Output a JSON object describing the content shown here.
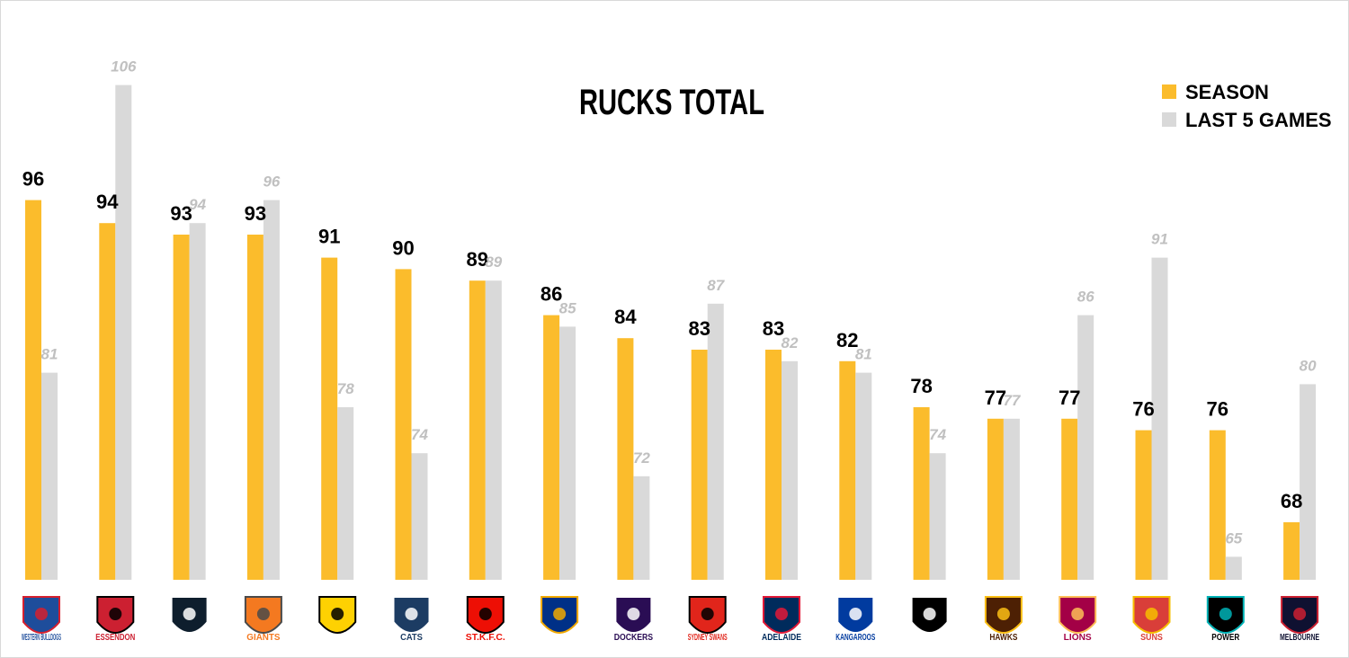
{
  "chart_data": {
    "type": "bar",
    "title": "RUCKS TOTAL",
    "xlabel": "",
    "ylabel": "",
    "ylim": [
      60,
      110
    ],
    "grid": false,
    "legend_position": "top-right",
    "categories": [
      "Western Bulldogs",
      "Essendon",
      "Carlton",
      "GWS Giants",
      "Richmond",
      "Geelong Cats",
      "St Kilda",
      "West Coast Eagles",
      "Fremantle Dockers",
      "Sydney Swans",
      "Adelaide Crows",
      "Kangaroos",
      "Collingwood",
      "Hawks",
      "Brisbane Lions",
      "Gold Coast Suns",
      "Port Adelaide Power",
      "Melbourne"
    ],
    "series": [
      {
        "name": "SEASON",
        "color": "#FBBC2C",
        "values": [
          96,
          94,
          93,
          93,
          91,
          90,
          89,
          86,
          84,
          83,
          83,
          82,
          78,
          77,
          77,
          76,
          76,
          68
        ]
      },
      {
        "name": "LAST 5 GAMES",
        "color": "#D9D9D9",
        "values": [
          81,
          106,
          94,
          96,
          78,
          74,
          89,
          85,
          72,
          87,
          82,
          81,
          74,
          77,
          86,
          91,
          65,
          80
        ]
      }
    ]
  },
  "logos": [
    {
      "icon": "bulldog-icon",
      "text": "WESTERN BULLDOGS",
      "color": "#1e4d9b",
      "accent": "#d6202e"
    },
    {
      "icon": "bomber-icon",
      "text": "ESSENDON",
      "color": "#cc2031",
      "accent": "#000000"
    },
    {
      "icon": "cfc-monogram-icon",
      "text": "",
      "color": "#0e1e2d",
      "accent": "#ffffff"
    },
    {
      "icon": "giants-icon",
      "text": "GIANTS",
      "color": "#f47920",
      "accent": "#4a4a4a"
    },
    {
      "icon": "tiger-icon",
      "text": "",
      "color": "#fed102",
      "accent": "#000000"
    },
    {
      "icon": "cat-icon",
      "text": "CATS",
      "color": "#1c3c63",
      "accent": "#ffffff"
    },
    {
      "icon": "saints-shield-icon",
      "text": "ST.K.F.C.",
      "color": "#ed0f05",
      "accent": "#000000"
    },
    {
      "icon": "eagle-icon",
      "text": "",
      "color": "#003087",
      "accent": "#f2a900"
    },
    {
      "icon": "anchor-icon",
      "text": "DOCKERS",
      "color": "#2a0d54",
      "accent": "#ffffff"
    },
    {
      "icon": "swan-icon",
      "text": "SYDNEY SWANS",
      "color": "#e1251b",
      "accent": "#000000"
    },
    {
      "icon": "crow-icon",
      "text": "ADELAIDE",
      "color": "#002b5c",
      "accent": "#e21937"
    },
    {
      "icon": "kangaroo-icon",
      "text": "KANGAROOS",
      "color": "#013b9f",
      "accent": "#ffffff"
    },
    {
      "icon": "magpie-icon",
      "text": "",
      "color": "#000000",
      "accent": "#ffffff"
    },
    {
      "icon": "hawk-icon",
      "text": "HAWKS",
      "color": "#4d2004",
      "accent": "#fbbf15"
    },
    {
      "icon": "lion-icon",
      "text": "LIONS",
      "color": "#a30046",
      "accent": "#fdbe57"
    },
    {
      "icon": "sun-icon",
      "text": "SUNS",
      "color": "#d93e39",
      "accent": "#f6bd00"
    },
    {
      "icon": "power-icon",
      "text": "POWER",
      "color": "#000000",
      "accent": "#00b2b6"
    },
    {
      "icon": "demon-icon",
      "text": "MELBOURNE",
      "color": "#0f1131",
      "accent": "#cc2031"
    }
  ]
}
